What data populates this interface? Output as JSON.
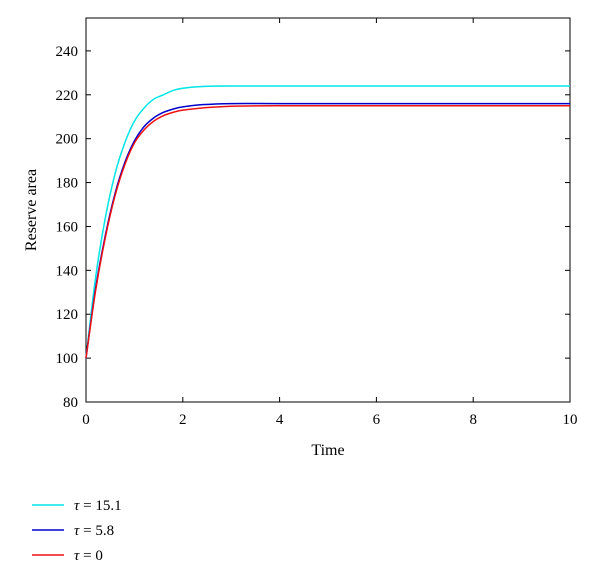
{
  "chart_data": {
    "type": "line",
    "title": "",
    "xlabel": "Time",
    "ylabel": "Reserve area",
    "xlim": [
      0,
      10
    ],
    "ylim": [
      80,
      255
    ],
    "xticks": [
      "0",
      "2",
      "4",
      "6",
      "8",
      "10"
    ],
    "yticks": [
      "80",
      "100",
      "120",
      "140",
      "160",
      "180",
      "200",
      "220",
      "240"
    ],
    "grid": false,
    "legend_position": "bottom-left",
    "series": [
      {
        "name": "τ = 15.1",
        "symbol": "τ",
        "value_text": " = 15.1",
        "color": "#00e5e5",
        "x": [
          0,
          0.2,
          0.4,
          0.6,
          0.8,
          1.0,
          1.2,
          1.4,
          1.6,
          1.8,
          2.0,
          2.4,
          3.0,
          4.0,
          6.0,
          8.0,
          10.0
        ],
        "y": [
          100,
          137,
          164,
          184,
          198,
          208,
          214,
          218,
          220,
          222,
          223,
          223.8,
          224,
          224,
          224,
          224,
          224
        ]
      },
      {
        "name": "τ = 5.8",
        "symbol": "τ",
        "value_text": " = 5.8",
        "color": "#0000cc",
        "x": [
          0,
          0.2,
          0.4,
          0.6,
          0.8,
          1.0,
          1.2,
          1.4,
          1.6,
          1.8,
          2.0,
          2.4,
          3.0,
          4.0,
          6.0,
          8.0,
          10.0
        ],
        "y": [
          100,
          132,
          156,
          175,
          189,
          199,
          205.5,
          209.5,
          212,
          213.5,
          214.5,
          215.5,
          216,
          216,
          216,
          216,
          216
        ]
      },
      {
        "name": "τ = 0",
        "symbol": "τ",
        "value_text": " = 0",
        "color": "#ee1111",
        "x": [
          0,
          0.2,
          0.4,
          0.6,
          0.8,
          1.0,
          1.2,
          1.4,
          1.6,
          1.8,
          2.0,
          2.4,
          3.0,
          4.0,
          6.0,
          8.0,
          10.0
        ],
        "y": [
          100,
          131,
          155,
          174,
          188,
          198,
          204,
          208,
          210.5,
          212,
          213,
          214,
          214.8,
          215,
          215,
          215,
          215
        ]
      }
    ]
  }
}
